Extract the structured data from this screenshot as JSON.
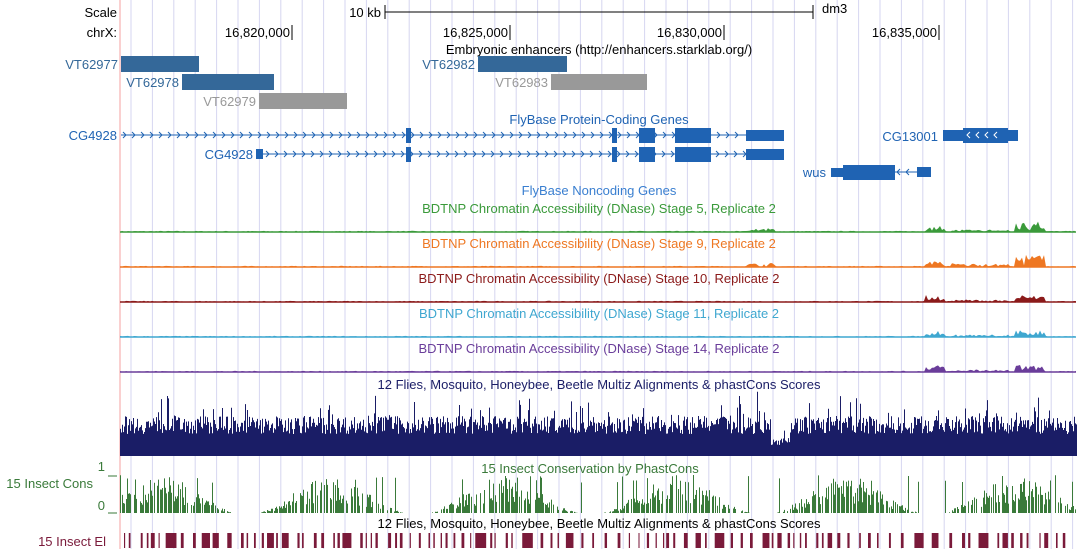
{
  "ruler": {
    "scale_label": "Scale",
    "chrom_label": "chrX:",
    "scale_bar_label": "10 kb",
    "assembly": "dm3",
    "positions": [
      "16,820,000",
      "16,825,000",
      "16,830,000",
      "16,835,000"
    ]
  },
  "enhancers": {
    "title": "Embryonic enhancers (http://enhancers.starklab.org/)",
    "items": [
      "VT62977",
      "VT62978",
      "VT62979",
      "VT62982",
      "VT62983"
    ]
  },
  "protein_coding": {
    "title": "FlyBase Protein-Coding Genes",
    "genes": [
      "CG4928",
      "CG4928",
      "CG13001",
      "wus"
    ]
  },
  "noncoding": {
    "title": "FlyBase Noncoding Genes"
  },
  "dnase_tracks": [
    {
      "title": "BDTNP Chromatin Accessibility (DNase) Stage 5, Replicate 2",
      "color": "#3a9a3a"
    },
    {
      "title": "BDTNP Chromatin Accessibility (DNase) Stage 9, Replicate 2",
      "color": "#ee7722"
    },
    {
      "title": "BDTNP Chromatin Accessibility (DNase) Stage 10, Replicate 2",
      "color": "#8b1a1a"
    },
    {
      "title": "BDTNP Chromatin Accessibility (DNase) Stage 11, Replicate 2",
      "color": "#3fa7d0"
    },
    {
      "title": "BDTNP Chromatin Accessibility (DNase) Stage 14, Replicate 2",
      "color": "#6a3d9a"
    }
  ],
  "conservation": {
    "multiz_title": "12 Flies, Mosquito, Honeybee, Beetle Multiz Alignments & phastCons Scores",
    "phastcons_title": "15 Insect Conservation by PhastCons",
    "cons_side_label": "15 Insect Cons",
    "axis_max": "1",
    "axis_min": "0",
    "elements_title": "12 Flies, Mosquito, Honeybee, Beetle Multiz Alignments & phastCons Scores",
    "elements_side_label": "15 Insect El"
  },
  "colors": {
    "enhancer_blue": "#346899",
    "enhancer_gray": "#999999",
    "gene_blue": "#1f63b3",
    "label_blue": "#1f63b3",
    "noncoding_blue": "#3a7fd0",
    "multiz_navy": "#1a1d66",
    "phastcons_green": "#3a7a3a",
    "elements_maroon": "#7a1a3a",
    "grid": "#d6d6f0",
    "left_line": "#f4a0a0"
  }
}
